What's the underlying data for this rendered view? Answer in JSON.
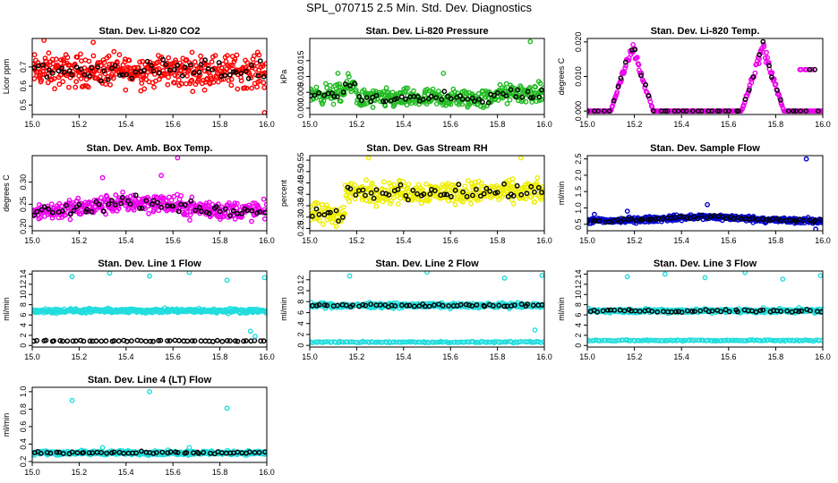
{
  "page_title": "SPL_070715  2.5 Min. Std. Dev. Diagnostics",
  "chart_data": [
    {
      "type": "scatter",
      "title": "Stan. Dev. Li-820 CO2",
      "ylabel": "Licor ppm",
      "xlim": [
        15.0,
        16.0
      ],
      "ylim": [
        0.45,
        0.85
      ],
      "xticks": [
        "15.0",
        "15.2",
        "15.4",
        "15.6",
        "15.8",
        "16.0"
      ],
      "yticks": [
        "0.5",
        "0.6",
        "0.7"
      ],
      "pattern": "noise",
      "base": 0.68,
      "spread": 0.07,
      "series": [
        {
          "color": "#ff0000",
          "count": 420,
          "role": "primary"
        },
        {
          "color": "#000000",
          "count": 60,
          "role": "secondary"
        }
      ],
      "outliers": [
        [
          15.05,
          0.84
        ],
        [
          15.26,
          0.83
        ],
        [
          15.99,
          0.46
        ]
      ]
    },
    {
      "type": "scatter",
      "title": "Stan. Dev. Li-820 Pressure",
      "ylabel": "kPa",
      "xlim": [
        15.0,
        16.0
      ],
      "ylim": [
        -0.002,
        0.022
      ],
      "xticks": [
        "15.0",
        "15.2",
        "15.4",
        "15.6",
        "15.8",
        "16.0"
      ],
      "yticks": [
        "0.000",
        "0.005",
        "0.010",
        "0.015"
      ],
      "pattern": "pressure",
      "base": 0.004,
      "spread": 0.0025,
      "series": [
        {
          "color": "#22bb22",
          "count": 400,
          "role": "primary"
        },
        {
          "color": "#000000",
          "count": 60,
          "role": "secondary"
        }
      ],
      "outliers": [
        [
          15.94,
          0.021
        ],
        [
          15.12,
          0.011
        ],
        [
          15.57,
          0.011
        ]
      ]
    },
    {
      "type": "scatter",
      "title": "Stan. Dev. Li-820 Temp.",
      "ylabel": "degrees C",
      "xlim": [
        15.0,
        16.0
      ],
      "ylim": [
        -0.001,
        0.021
      ],
      "xticks": [
        "15.0",
        "15.2",
        "15.4",
        "15.6",
        "15.8",
        "16.0"
      ],
      "yticks": [
        "0.000",
        "0.010",
        "0.020"
      ],
      "pattern": "temp",
      "base": 0.0,
      "spread": 0.0,
      "series": [
        {
          "color": "#ee00ee",
          "count": 300,
          "role": "primary"
        },
        {
          "color": "#000000",
          "count": 50,
          "role": "secondary"
        }
      ],
      "outliers": []
    },
    {
      "type": "scatter",
      "title": "Stan. Dev. Amb. Box Temp.",
      "ylabel": "degrees C",
      "xlim": [
        15.0,
        16.0
      ],
      "ylim": [
        0.19,
        0.36
      ],
      "xticks": [
        "15.0",
        "15.2",
        "15.4",
        "15.6",
        "15.8",
        "16.0"
      ],
      "yticks": [
        "0.20",
        "0.25",
        "0.30"
      ],
      "pattern": "hump",
      "base": 0.235,
      "spread": 0.018,
      "series": [
        {
          "color": "#ee00ee",
          "count": 400,
          "role": "primary"
        },
        {
          "color": "#000000",
          "count": 60,
          "role": "secondary"
        }
      ],
      "outliers": [
        [
          15.62,
          0.355
        ],
        [
          15.3,
          0.31
        ],
        [
          15.55,
          0.315
        ]
      ]
    },
    {
      "type": "scatter",
      "title": "Stan. Dev. Gas Stream RH",
      "ylabel": "percent",
      "xlim": [
        15.0,
        16.0
      ],
      "ylim": [
        0.24,
        0.57
      ],
      "xticks": [
        "15.0",
        "15.2",
        "15.4",
        "15.6",
        "15.8",
        "16.0"
      ],
      "yticks": [
        "0.25",
        "0.30",
        "0.35",
        "0.40",
        "0.45",
        "0.50",
        "0.55"
      ],
      "pattern": "step",
      "base": 0.41,
      "spread": 0.04,
      "series": [
        {
          "color": "#eeee00",
          "count": 400,
          "role": "primary"
        },
        {
          "color": "#000000",
          "count": 60,
          "role": "secondary"
        }
      ],
      "outliers": [
        [
          15.25,
          0.56
        ],
        [
          15.9,
          0.56
        ]
      ]
    },
    {
      "type": "scatter",
      "title": "Stan. Dev. Sample Flow",
      "ylabel": "ml/min",
      "xlim": [
        15.0,
        16.0
      ],
      "ylim": [
        0.3,
        2.6
      ],
      "xticks": [
        "15.0",
        "15.2",
        "15.4",
        "15.6",
        "15.8",
        "16.0"
      ],
      "yticks": [
        "0.5",
        "1.0",
        "1.5",
        "2.0",
        "2.5"
      ],
      "pattern": "band",
      "base": 0.6,
      "spread": 0.07,
      "series": [
        {
          "color": "#0000cc",
          "count": 420,
          "role": "primary"
        },
        {
          "color": "#000000",
          "count": 60,
          "role": "secondary"
        }
      ],
      "outliers": [
        [
          15.93,
          2.5
        ],
        [
          15.03,
          0.8
        ],
        [
          15.17,
          0.9
        ],
        [
          15.51,
          1.1
        ],
        [
          15.97,
          0.35
        ]
      ]
    },
    {
      "type": "scatter",
      "title": "Stan. Dev. Line 1 Flow",
      "ylabel": "ml/min",
      "xlim": [
        15.0,
        16.0
      ],
      "ylim": [
        -0.3,
        14.6
      ],
      "xticks": [
        "15.0",
        "15.2",
        "15.4",
        "15.6",
        "15.8",
        "16.0"
      ],
      "yticks": [
        "0",
        "2",
        "4",
        "6",
        "8",
        "10",
        "12",
        "14"
      ],
      "pattern": "band",
      "base": 6.8,
      "spread": 0.35,
      "series": [
        {
          "color": "#22dddd",
          "count": 400,
          "role": "primary"
        },
        {
          "color": "#000000",
          "count": 55,
          "role": "low",
          "level": 0.9
        }
      ],
      "outliers": [
        [
          15.17,
          13.5
        ],
        [
          15.33,
          14.2
        ],
        [
          15.5,
          13.6
        ],
        [
          15.67,
          14.3
        ],
        [
          15.83,
          12.8
        ],
        [
          15.99,
          13.3
        ],
        [
          15.93,
          2.8
        ],
        [
          15.95,
          1.8
        ]
      ]
    },
    {
      "type": "scatter",
      "title": "Stan. Dev. Line 2 Flow",
      "ylabel": "ml/min",
      "xlim": [
        15.0,
        16.0
      ],
      "ylim": [
        -0.3,
        13.6
      ],
      "xticks": [
        "15.0",
        "15.2",
        "15.4",
        "15.6",
        "15.8",
        "16.0"
      ],
      "yticks": [
        "0",
        "2",
        "4",
        "6",
        "8",
        "10",
        "12"
      ],
      "pattern": "band",
      "base": 7.3,
      "spread": 0.35,
      "series": [
        {
          "color": "#22dddd",
          "count": 400,
          "role": "primary"
        },
        {
          "color": "#000000",
          "count": 55,
          "role": "secondary"
        },
        {
          "color": "#22dddd",
          "count": 120,
          "role": "low",
          "level": 0.6
        }
      ],
      "outliers": [
        [
          15.17,
          12.7
        ],
        [
          15.5,
          13.4
        ],
        [
          15.83,
          12.3
        ],
        [
          15.99,
          12.8
        ],
        [
          15.96,
          2.8
        ]
      ]
    },
    {
      "type": "scatter",
      "title": "Stan. Dev. Line 3 Flow",
      "ylabel": "ml/min",
      "xlim": [
        15.0,
        16.0
      ],
      "ylim": [
        -0.3,
        14.6
      ],
      "xticks": [
        "15.0",
        "15.2",
        "15.4",
        "15.6",
        "15.8",
        "16.0"
      ],
      "yticks": [
        "0",
        "2",
        "4",
        "6",
        "8",
        "10",
        "12",
        "14"
      ],
      "pattern": "band",
      "base": 6.8,
      "spread": 0.35,
      "series": [
        {
          "color": "#22dddd",
          "count": 400,
          "role": "primary"
        },
        {
          "color": "#000000",
          "count": 55,
          "role": "secondary"
        },
        {
          "color": "#22dddd",
          "count": 120,
          "role": "low",
          "level": 1.0
        }
      ],
      "outliers": [
        [
          15.17,
          13.5
        ],
        [
          15.33,
          14.0
        ],
        [
          15.5,
          13.3
        ],
        [
          15.67,
          14.3
        ],
        [
          15.83,
          13.0
        ],
        [
          15.99,
          13.7
        ]
      ]
    },
    {
      "type": "scatter",
      "title": "Stan. Dev. Line 4 (LT) Flow",
      "ylabel": "ml/min",
      "xlim": [
        15.0,
        16.0
      ],
      "ylim": [
        0.19,
        1.05
      ],
      "xticks": [
        "15.0",
        "15.2",
        "15.4",
        "15.6",
        "15.8",
        "16.0"
      ],
      "yticks": [
        "0.2",
        "0.4",
        "0.6",
        "0.8",
        "1.0"
      ],
      "pattern": "band",
      "base": 0.3,
      "spread": 0.02,
      "series": [
        {
          "color": "#22dddd",
          "count": 380,
          "role": "primary"
        },
        {
          "color": "#000000",
          "count": 55,
          "role": "secondary"
        }
      ],
      "outliers": [
        [
          15.5,
          1.0
        ],
        [
          15.17,
          0.9
        ],
        [
          15.83,
          0.81
        ],
        [
          15.3,
          0.36
        ],
        [
          15.67,
          0.36
        ]
      ]
    }
  ]
}
